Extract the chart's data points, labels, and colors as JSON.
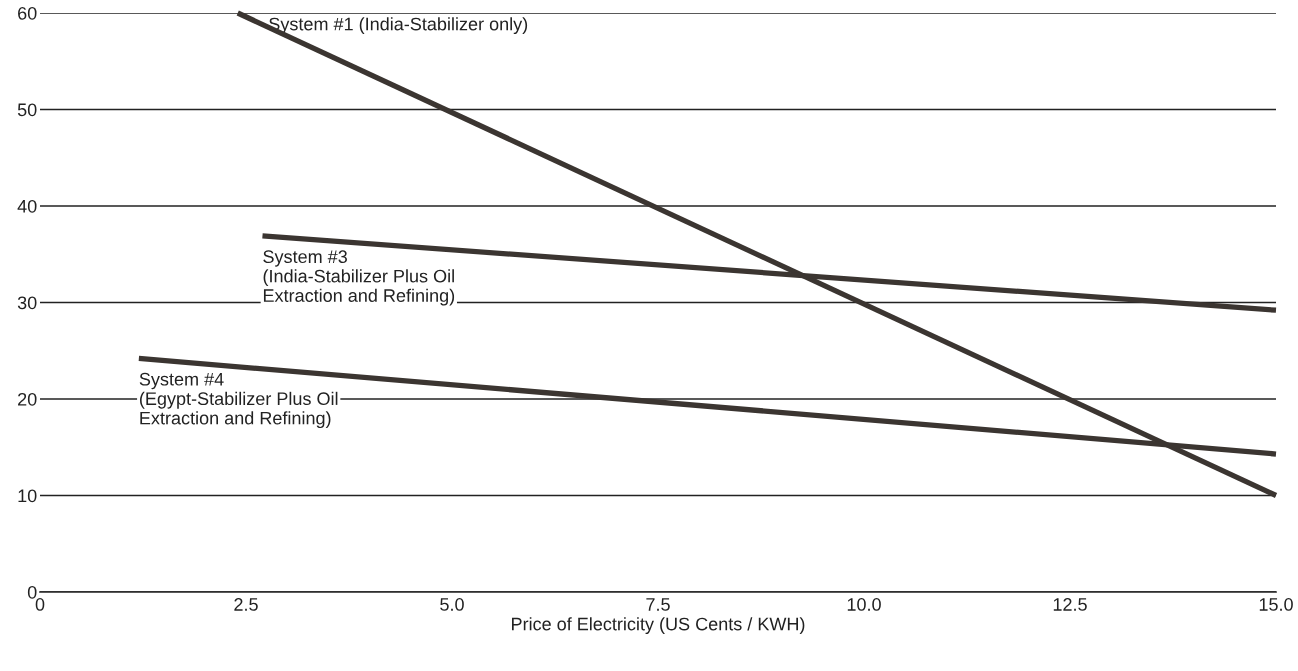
{
  "chart_data": {
    "type": "line",
    "xlabel": "Price of Electricity (US Cents / KWH)",
    "xlim": [
      0,
      15
    ],
    "xticks": [
      0,
      2.5,
      {
        "value": 5,
        "label": "5.0"
      },
      7.5,
      {
        "value": 10,
        "label": "10.0"
      },
      12.5,
      {
        "value": 15,
        "label": "15.0"
      }
    ],
    "ylim": [
      0,
      60
    ],
    "yticks": [
      0,
      10,
      20,
      30,
      40,
      50,
      60
    ],
    "grid": "y",
    "marker": "none",
    "line_style": "solid",
    "series": [
      {
        "name": "System #1 (India-Stabilizer only)",
        "color": "#3b3531",
        "x": [
          2.4,
          15
        ],
        "values": [
          60,
          10
        ]
      },
      {
        "name": "System #3\n(India-Stabilizer Plus Oil\nExtraction and Refining)",
        "color": "#3b3531",
        "x": [
          2.7,
          15
        ],
        "values": [
          36.9,
          29.2
        ]
      },
      {
        "name": "System #4\n(Egypt-Stabilizer Plus Oil\nExtraction and Refining)",
        "color": "#3b3531",
        "x": [
          1.2,
          15
        ],
        "values": [
          24.2,
          14.3
        ]
      }
    ]
  }
}
